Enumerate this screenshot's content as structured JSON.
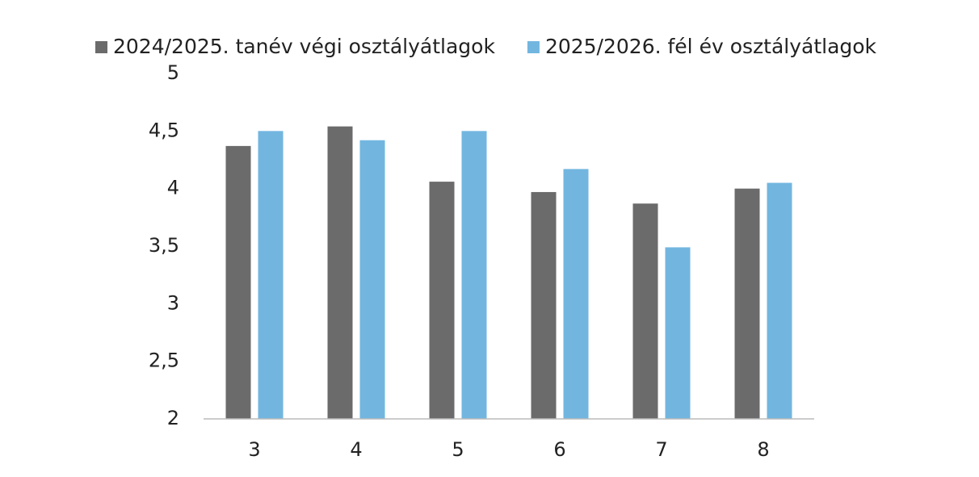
{
  "chart_data": {
    "type": "bar",
    "categories": [
      "3",
      "4",
      "5",
      "6",
      "7",
      "8"
    ],
    "series": [
      {
        "name": "2024/2025. tanév végi osztályátlagok",
        "color": "#6b6b6b",
        "values": [
          4.37,
          4.54,
          4.06,
          3.97,
          3.87,
          4.0
        ]
      },
      {
        "name": "2025/2026. fél év osztályátlagok",
        "color": "#72b6e0",
        "values": [
          4.5,
          4.42,
          4.5,
          4.17,
          3.49,
          4.05
        ]
      }
    ],
    "ylim": [
      2,
      5
    ],
    "yticks": [
      2,
      {
        "value": 2.5,
        "label": "2,5"
      },
      3,
      {
        "value": 3.5,
        "label": "3,5"
      },
      4,
      {
        "value": 4.5,
        "label": "4,5"
      },
      5
    ],
    "grid": false,
    "legend": "top"
  }
}
